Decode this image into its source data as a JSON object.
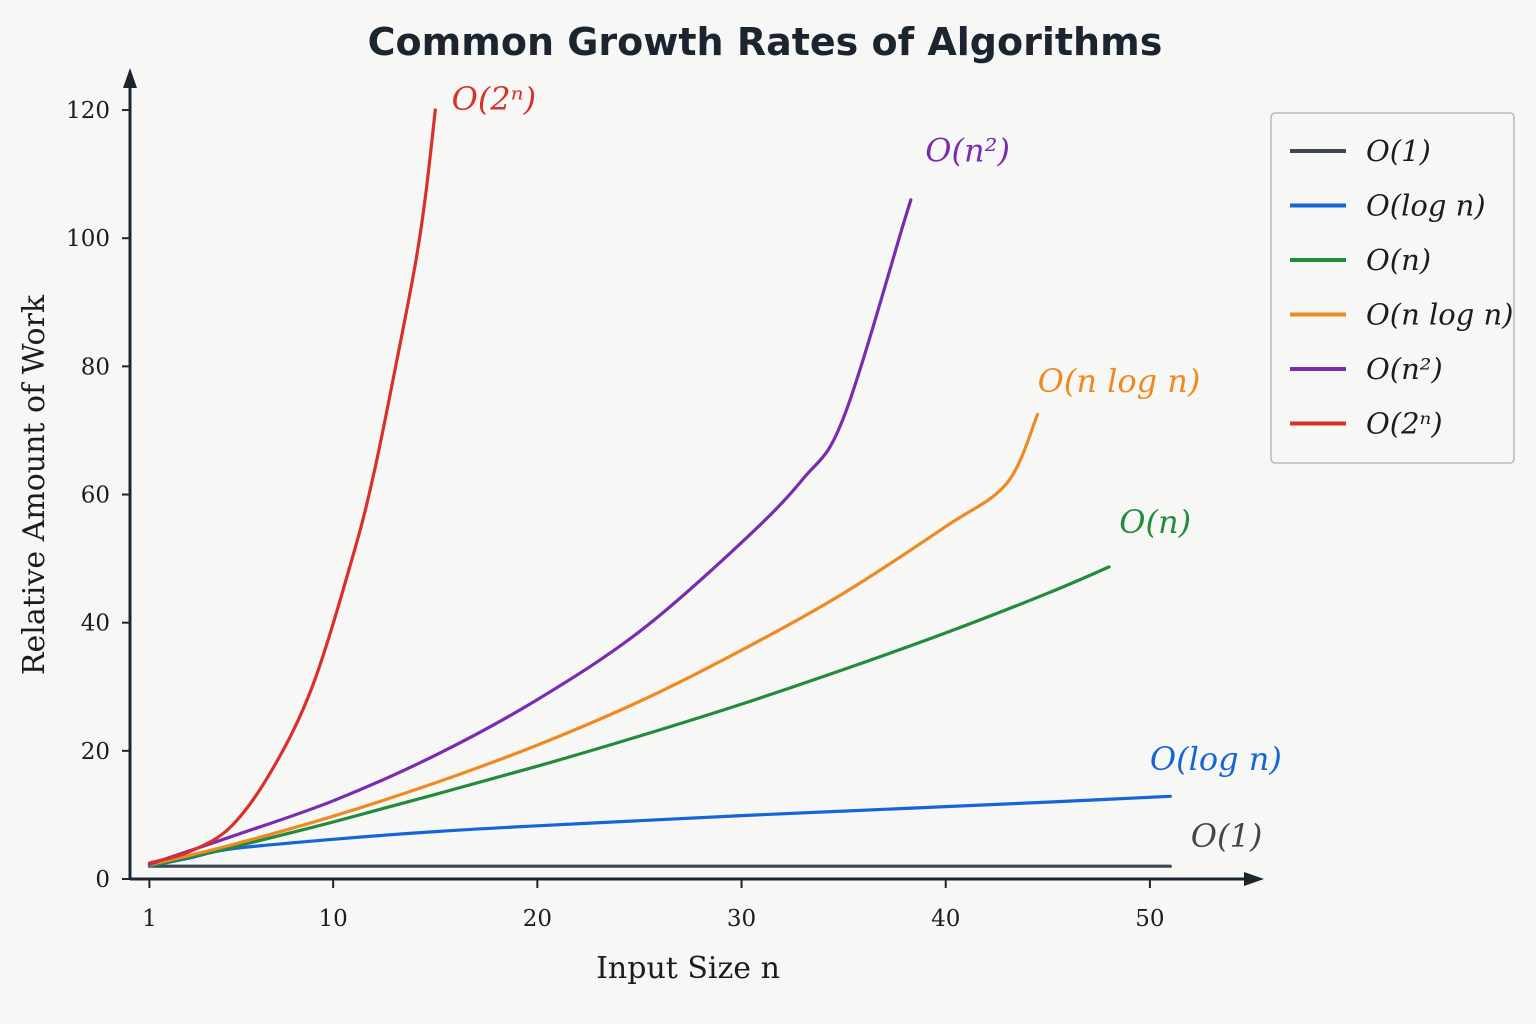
{
  "chart_data": {
    "type": "line",
    "title": "Common Growth Rates of Algorithms",
    "xlabel": "Input Size n",
    "ylabel": "Relative Amount of Work",
    "xlim": [
      0.05,
      55
    ],
    "ylim": [
      0,
      125
    ],
    "xticks": [
      1,
      10,
      20,
      30,
      40,
      50
    ],
    "yticks": [
      0,
      20,
      40,
      60,
      80,
      100,
      120
    ],
    "grid": false,
    "legend_position": "top-right",
    "series": [
      {
        "name": "O(1)",
        "color": "#3f4750",
        "label_x": 52,
        "label_y": 5,
        "points": [
          [
            1,
            2
          ],
          [
            10,
            2
          ],
          [
            20,
            2
          ],
          [
            30,
            2
          ],
          [
            40,
            2
          ],
          [
            51,
            2
          ]
        ]
      },
      {
        "name": "O(log n)",
        "color": "#1665d8",
        "label_x": 50,
        "label_y": 17,
        "points": [
          [
            1,
            2
          ],
          [
            3,
            3.3
          ],
          [
            5,
            4.7
          ],
          [
            10,
            6.2
          ],
          [
            15,
            7.4
          ],
          [
            20,
            8.3
          ],
          [
            25,
            9.1
          ],
          [
            30,
            9.9
          ],
          [
            35,
            10.6
          ],
          [
            40,
            11.3
          ],
          [
            45,
            12
          ],
          [
            51,
            12.9
          ]
        ]
      },
      {
        "name": "O(n)",
        "color": "#228b3c",
        "label_x": 48.5,
        "label_y": 54,
        "points": [
          [
            1,
            2
          ],
          [
            5,
            4.9
          ],
          [
            10,
            8.9
          ],
          [
            15,
            13.2
          ],
          [
            20,
            17.6
          ],
          [
            25,
            22.3
          ],
          [
            30,
            27.3
          ],
          [
            35,
            32.7
          ],
          [
            40,
            38.4
          ],
          [
            45,
            44.6
          ],
          [
            48,
            48.7
          ]
        ]
      },
      {
        "name": "O(n log n)",
        "color": "#ef8a22",
        "label_x": 44.5,
        "label_y": 76,
        "points": [
          [
            1,
            2.2
          ],
          [
            5,
            5.3
          ],
          [
            10,
            9.8
          ],
          [
            15,
            15
          ],
          [
            20,
            20.9
          ],
          [
            25,
            27.7
          ],
          [
            30,
            35.7
          ],
          [
            35,
            44.6
          ],
          [
            40,
            55
          ],
          [
            43,
            61.8
          ],
          [
            44.5,
            72.5
          ]
        ]
      },
      {
        "name": "O(n²)",
        "color": "#7a2cb0",
        "label_x": 39,
        "label_y": 112,
        "points": [
          [
            1,
            2.3
          ],
          [
            5,
            6.6
          ],
          [
            10,
            12.2
          ],
          [
            15,
            19.3
          ],
          [
            20,
            28
          ],
          [
            25,
            38.6
          ],
          [
            30,
            52.5
          ],
          [
            33,
            62.4
          ],
          [
            35,
            72
          ],
          [
            38,
            103
          ],
          [
            38.2,
            105
          ]
        ]
      },
      {
        "name": "O(2ⁿ)",
        "color": "#d9302c",
        "label_x": 15.8,
        "label_y": 120,
        "points": [
          [
            1,
            2.5
          ],
          [
            3,
            4.3
          ],
          [
            5,
            8.2
          ],
          [
            7,
            17
          ],
          [
            9,
            30.2
          ],
          [
            11,
            50.8
          ],
          [
            12,
            63.4
          ],
          [
            13,
            79
          ],
          [
            14,
            95.5
          ],
          [
            14.5,
            106
          ],
          [
            15,
            120
          ]
        ]
      }
    ]
  }
}
